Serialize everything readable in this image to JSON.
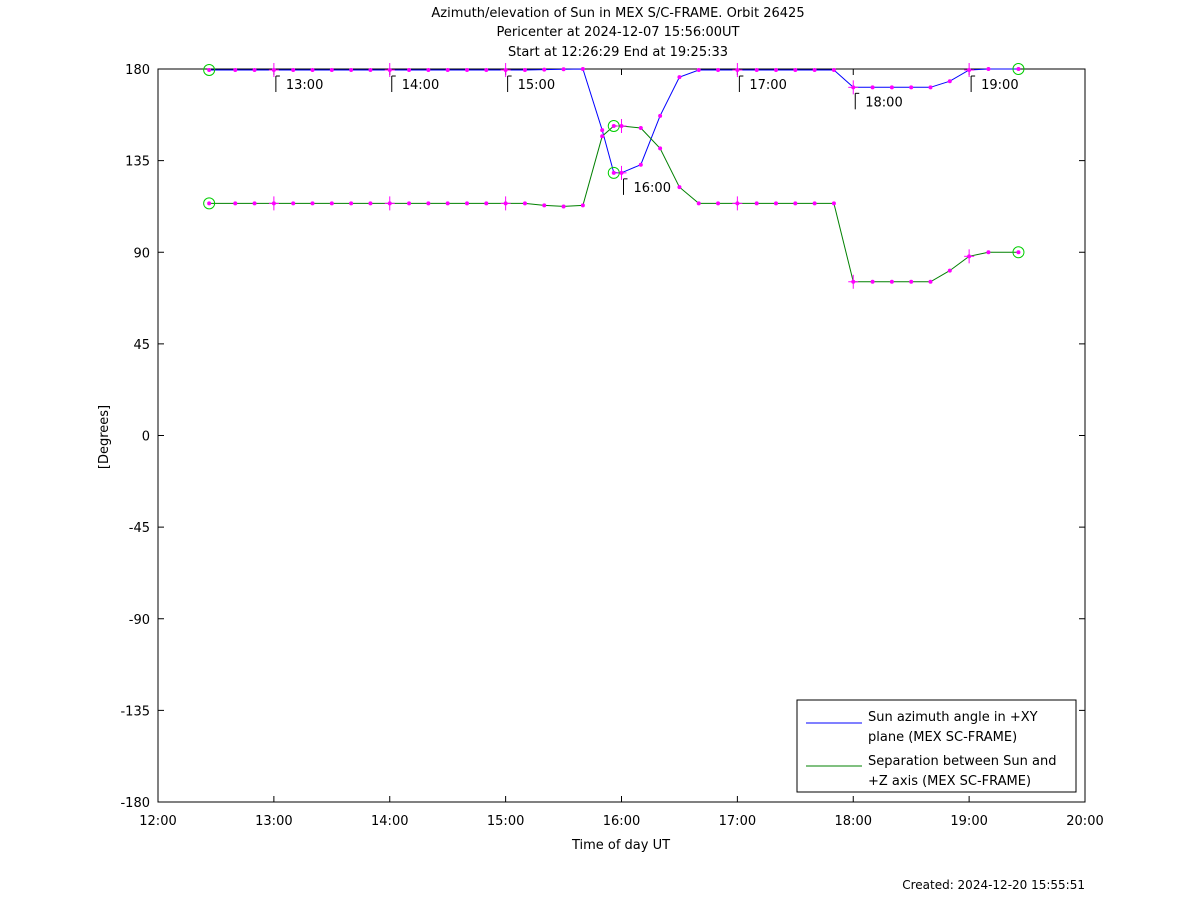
{
  "title_lines": [
    "Azimuth/elevation of Sun in MEX S/C-FRAME.  Orbit 26425",
    "Pericenter at 2024-12-07 15:56:00UT",
    "Start at 12:26:29 End at 19:25:33"
  ],
  "created": "Created: 2024-12-20 15:55:51",
  "colors": {
    "azimuth": "#0000ff",
    "separation": "#008000",
    "marker": "#ff00ff",
    "endpoint": "#00cc00"
  },
  "chart_data": {
    "type": "line",
    "title": "Azimuth/elevation of Sun in MEX S/C-FRAME.  Orbit 26425",
    "xlabel": "Time of day UT",
    "ylabel": "[Degrees]",
    "xlim": [
      12,
      20
    ],
    "ylim": [
      -180,
      180
    ],
    "x_ticks": [
      {
        "v": 12,
        "label": "12:00"
      },
      {
        "v": 13,
        "label": "13:00"
      },
      {
        "v": 14,
        "label": "14:00"
      },
      {
        "v": 15,
        "label": "15:00"
      },
      {
        "v": 16,
        "label": "16:00"
      },
      {
        "v": 17,
        "label": "17:00"
      },
      {
        "v": 18,
        "label": "18:00"
      },
      {
        "v": 19,
        "label": "19:00"
      },
      {
        "v": 20,
        "label": "20:00"
      }
    ],
    "y_ticks": [
      {
        "v": 180,
        "label": "180"
      },
      {
        "v": 135,
        "label": "135"
      },
      {
        "v": 90,
        "label": "90"
      },
      {
        "v": 45,
        "label": "45"
      },
      {
        "v": 0,
        "label": "0"
      },
      {
        "v": -45,
        "label": "-45"
      },
      {
        "v": -90,
        "label": "-90"
      },
      {
        "v": -135,
        "label": "-135"
      },
      {
        "v": -180,
        "label": "-180"
      }
    ],
    "legend_position": "bottom-right",
    "series": [
      {
        "name": "Sun azimuth angle in +XY plane (MEX SC-FRAME)",
        "legend_lines": [
          "Sun azimuth angle in +XY",
          "plane (MEX SC-FRAME)"
        ],
        "color": "#0000ff",
        "x": [
          12.4414,
          12.6667,
          12.8333,
          13.0,
          13.1667,
          13.3333,
          13.5,
          13.6667,
          13.8333,
          14.0,
          14.1667,
          14.3333,
          14.5,
          14.6667,
          14.8333,
          15.0,
          15.1667,
          15.3333,
          15.5,
          15.6667,
          15.8333,
          15.9333,
          16.0,
          16.1667,
          16.3333,
          16.5,
          16.6667,
          16.8333,
          17.0,
          17.1667,
          17.3333,
          17.5,
          17.6667,
          17.8333,
          18.0,
          18.1667,
          18.3333,
          18.5,
          18.6667,
          18.8333,
          19.0,
          19.1667,
          19.4258
        ],
        "y": [
          179.5,
          179.5,
          179.5,
          179.5,
          179.5,
          179.5,
          179.5,
          179.5,
          179.5,
          179.5,
          179.5,
          179.5,
          179.5,
          179.5,
          179.5,
          179.5,
          179.5,
          179.7,
          179.9,
          180,
          150,
          129,
          129,
          133,
          157,
          176,
          179.5,
          179.5,
          179.5,
          179.5,
          179.5,
          179.5,
          179.5,
          179.5,
          171,
          171,
          171,
          171,
          171,
          174,
          179.5,
          180,
          180
        ]
      },
      {
        "name": "Separation between Sun and +Z axis (MEX SC-FRAME)",
        "legend_lines": [
          "Separation between Sun and",
          "+Z axis (MEX SC-FRAME)"
        ],
        "color": "#008000",
        "x": [
          12.4414,
          12.6667,
          12.8333,
          13.0,
          13.1667,
          13.3333,
          13.5,
          13.6667,
          13.8333,
          14.0,
          14.1667,
          14.3333,
          14.5,
          14.6667,
          14.8333,
          15.0,
          15.1667,
          15.3333,
          15.5,
          15.6667,
          15.8333,
          15.9333,
          16.0,
          16.1667,
          16.3333,
          16.5,
          16.6667,
          16.8333,
          17.0,
          17.1667,
          17.3333,
          17.5,
          17.6667,
          17.8333,
          18.0,
          18.1667,
          18.3333,
          18.5,
          18.6667,
          18.8333,
          19.0,
          19.1667,
          19.4258
        ],
        "y": [
          114,
          114,
          114,
          114,
          114,
          114,
          114,
          114,
          114,
          114,
          114,
          114,
          114,
          114,
          114,
          114,
          114,
          113,
          112.5,
          113,
          147,
          152,
          152,
          151,
          141,
          122,
          114,
          114,
          114,
          114,
          114,
          114,
          114,
          114,
          75.5,
          75.5,
          75.5,
          75.5,
          75.5,
          81,
          88,
          90,
          90
        ]
      }
    ],
    "time_annotations": [
      {
        "x": 13.0,
        "y": 179.5,
        "label": "13:00"
      },
      {
        "x": 14.0,
        "y": 179.5,
        "label": "14:00"
      },
      {
        "x": 15.0,
        "y": 179.5,
        "label": "15:00"
      },
      {
        "x": 16.0,
        "y": 129,
        "label": "16:00"
      },
      {
        "x": 17.0,
        "y": 179.5,
        "label": "17:00"
      },
      {
        "x": 18.0,
        "y": 171,
        "label": "18:00"
      },
      {
        "x": 19.0,
        "y": 179.5,
        "label": "19:00"
      }
    ]
  }
}
